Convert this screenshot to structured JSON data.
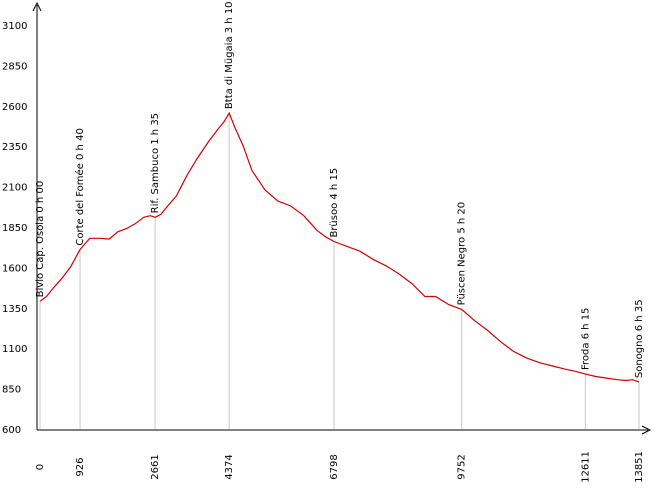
{
  "chart_data": {
    "type": "line",
    "title": "",
    "xlabel": "",
    "ylabel": "",
    "ylim": [
      600,
      3100
    ],
    "xlim": [
      0,
      13851
    ],
    "y_ticks": [
      600,
      850,
      1100,
      1350,
      1600,
      1850,
      2100,
      2350,
      2600,
      2850,
      3100
    ],
    "y_tick_labels": [
      "600",
      "850",
      "1100",
      "1350",
      "1600",
      "1850",
      "2100",
      "2350",
      "2600",
      "2850",
      "3100"
    ],
    "grid": false,
    "waypoints": [
      {
        "x": 0,
        "x_label": "0",
        "label": "Bivio Cap. Osola 0 h 00"
      },
      {
        "x": 926,
        "x_label": "926",
        "label": "Corte del Fomée 0 h 40"
      },
      {
        "x": 2661,
        "x_label": "2661",
        "label": "Rif. Sambuco 1 h 35"
      },
      {
        "x": 4374,
        "x_label": "4374",
        "label": "Btta di Mügaia 3 h 10"
      },
      {
        "x": 6798,
        "x_label": "6798",
        "label": "Brüsoo 4 h 15"
      },
      {
        "x": 9752,
        "x_label": "9752",
        "label": "Püscen Negro 5 h 20"
      },
      {
        "x": 12611,
        "x_label": "12611",
        "label": "Froda 6 h 15"
      },
      {
        "x": 13851,
        "x_label": "13851",
        "label": "Sonogno 6 h 35"
      }
    ],
    "series": [
      {
        "color": "#d40000",
        "x": [
          0,
          150,
          300,
          500,
          700,
          926,
          1150,
          1400,
          1600,
          1800,
          2000,
          2200,
          2400,
          2550,
          2661,
          2800,
          2950,
          3150,
          3400,
          3650,
          3900,
          4100,
          4250,
          4374,
          4500,
          4700,
          4900,
          5200,
          5500,
          5800,
          6100,
          6400,
          6600,
          6798,
          7100,
          7400,
          7700,
          8000,
          8300,
          8600,
          8900,
          9150,
          9450,
          9752,
          10050,
          10350,
          10650,
          10950,
          11250,
          11550,
          11850,
          12150,
          12400,
          12611,
          12850,
          13100,
          13350,
          13550,
          13700,
          13851
        ],
        "y": [
          1390,
          1420,
          1470,
          1530,
          1600,
          1710,
          1780,
          1780,
          1775,
          1820,
          1840,
          1870,
          1910,
          1920,
          1910,
          1930,
          1980,
          2040,
          2170,
          2280,
          2380,
          2450,
          2500,
          2555,
          2470,
          2350,
          2200,
          2080,
          2010,
          1980,
          1920,
          1830,
          1790,
          1760,
          1730,
          1700,
          1650,
          1610,
          1560,
          1500,
          1420,
          1420,
          1370,
          1340,
          1270,
          1210,
          1140,
          1080,
          1040,
          1010,
          990,
          970,
          955,
          940,
          925,
          915,
          905,
          900,
          905,
          890
        ]
      }
    ]
  }
}
